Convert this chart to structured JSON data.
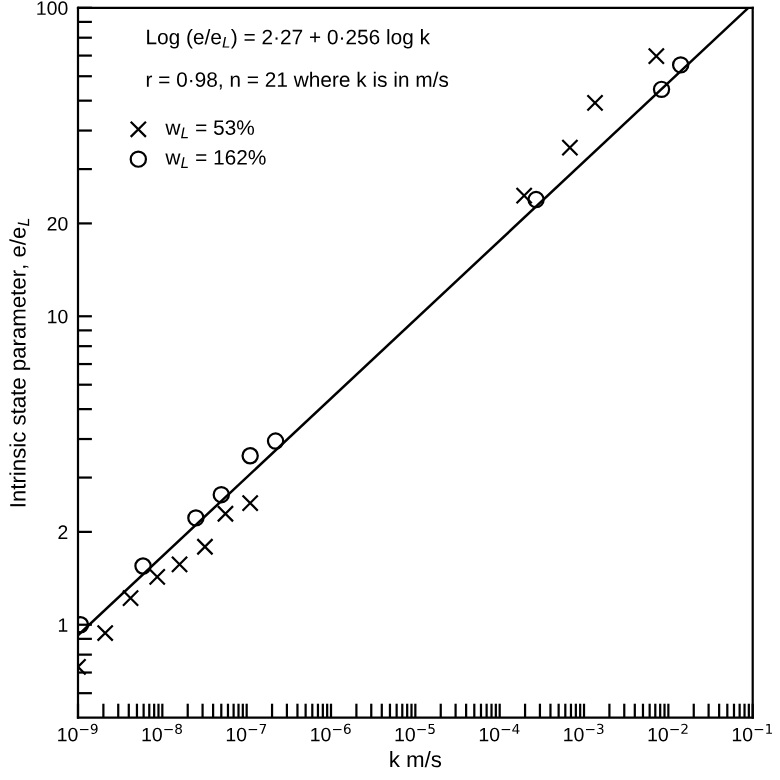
{
  "chart_data": {
    "type": "scatter",
    "log": "xy",
    "xlabel": "k m/s",
    "ylabel": "Intrinsic state parameter, e/e$_{L}$",
    "annotations": [
      "Log (e/e$_{L}$) = 2·27 + 0·256 log k",
      "r = 0·98, n = 21 where k is in m/s"
    ],
    "series": [
      {
        "name": "w$_{L}$ = 53%",
        "color": "#000000",
        "marker": "cross",
        "x": [
          1e-09,
          2.1e-09,
          4.2e-09,
          8.7e-09,
          1.6e-08,
          3.2e-08,
          5.6e-08,
          1.1e-07,
          0.000195,
          0.00068,
          0.00135,
          0.0072
        ],
        "values": [
          0.73,
          0.94,
          1.22,
          1.43,
          1.57,
          1.79,
          2.29,
          2.48,
          24.6,
          35.2,
          49.2,
          69.7
        ]
      },
      {
        "name": "w$_{L}$ = 162%",
        "color": "#000000",
        "marker": "circle",
        "x": [
          1.07e-09,
          5.9e-09,
          2.5e-08,
          5e-08,
          1.1e-07,
          2.2e-07,
          0.00027,
          0.0083,
          0.014
        ],
        "values": [
          1.0,
          1.55,
          2.22,
          2.64,
          3.53,
          3.94,
          23.9,
          54.4,
          65.3
        ]
      },
      {
        "type": "line",
        "color": "#000000",
        "marker": "none",
        "line_style": "solid",
        "x": [
          1e-09,
          0.089
        ],
        "values": [
          0.925,
          100
        ]
      }
    ],
    "xlim": [
      1e-09,
      0.1
    ],
    "ylim": [
      0.5,
      100
    ],
    "xticks": [
      {
        "value": 1e-09,
        "label": "10$^{−9}$"
      },
      {
        "value": 1e-08,
        "label": "10$^{−8}$"
      },
      {
        "value": 1e-07,
        "label": "10$^{−7}$"
      },
      {
        "value": 1e-06,
        "label": "10$^{−6}$"
      },
      {
        "value": 1e-05,
        "label": "10$^{−5}$"
      },
      {
        "value": 0.0001,
        "label": "10$^{−4}$"
      },
      {
        "value": 0.001,
        "label": "10$^{−3}$"
      },
      {
        "value": 0.01,
        "label": "10$^{−2}$"
      },
      {
        "value": 0.1,
        "label": "10$^{−1}$"
      },
      {
        "value": 2e-09,
        "label": null
      },
      {
        "value": 3e-09,
        "label": null
      },
      {
        "value": 4e-09,
        "label": null
      },
      {
        "value": 5e-09,
        "label": null
      },
      {
        "value": 6e-09,
        "label": null
      },
      {
        "value": 7e-09,
        "label": null
      },
      {
        "value": 8e-09,
        "label": null
      },
      {
        "value": 9e-09,
        "label": null
      },
      {
        "value": 2e-08,
        "label": null
      },
      {
        "value": 3e-08,
        "label": null
      },
      {
        "value": 4e-08,
        "label": null
      },
      {
        "value": 5e-08,
        "label": null
      },
      {
        "value": 6e-08,
        "label": null
      },
      {
        "value": 7e-08,
        "label": null
      },
      {
        "value": 8e-08,
        "label": null
      },
      {
        "value": 9e-08,
        "label": null
      },
      {
        "value": 2e-07,
        "label": null
      },
      {
        "value": 3e-07,
        "label": null
      },
      {
        "value": 4e-07,
        "label": null
      },
      {
        "value": 5e-07,
        "label": null
      },
      {
        "value": 6e-07,
        "label": null
      },
      {
        "value": 7e-07,
        "label": null
      },
      {
        "value": 8e-07,
        "label": null
      },
      {
        "value": 9e-07,
        "label": null
      },
      {
        "value": 2e-06,
        "label": null
      },
      {
        "value": 3e-06,
        "label": null
      },
      {
        "value": 4e-06,
        "label": null
      },
      {
        "value": 5e-06,
        "label": null
      },
      {
        "value": 6e-06,
        "label": null
      },
      {
        "value": 7e-06,
        "label": null
      },
      {
        "value": 8e-06,
        "label": null
      },
      {
        "value": 9e-06,
        "label": null
      },
      {
        "value": 2e-05,
        "label": null
      },
      {
        "value": 3e-05,
        "label": null
      },
      {
        "value": 4e-05,
        "label": null
      },
      {
        "value": 5e-05,
        "label": null
      },
      {
        "value": 6e-05,
        "label": null
      },
      {
        "value": 7e-05,
        "label": null
      },
      {
        "value": 8e-05,
        "label": null
      },
      {
        "value": 9e-05,
        "label": null
      },
      {
        "value": 0.0002,
        "label": null
      },
      {
        "value": 0.0003,
        "label": null
      },
      {
        "value": 0.0004,
        "label": null
      },
      {
        "value": 0.0005,
        "label": null
      },
      {
        "value": 0.0006,
        "label": null
      },
      {
        "value": 0.0007,
        "label": null
      },
      {
        "value": 0.0008,
        "label": null
      },
      {
        "value": 0.0009,
        "label": null
      },
      {
        "value": 0.002,
        "label": null
      },
      {
        "value": 0.003,
        "label": null
      },
      {
        "value": 0.004,
        "label": null
      },
      {
        "value": 0.005,
        "label": null
      },
      {
        "value": 0.006,
        "label": null
      },
      {
        "value": 0.007,
        "label": null
      },
      {
        "value": 0.008,
        "label": null
      },
      {
        "value": 0.009,
        "label": null
      },
      {
        "value": 0.02,
        "label": null
      },
      {
        "value": 0.03,
        "label": null
      },
      {
        "value": 0.04,
        "label": null
      },
      {
        "value": 0.05,
        "label": null
      },
      {
        "value": 0.06,
        "label": null
      },
      {
        "value": 0.07,
        "label": null
      },
      {
        "value": 0.08,
        "label": null
      },
      {
        "value": 0.09,
        "label": null
      }
    ],
    "yticks": [
      1,
      2,
      10,
      20,
      100,
      {
        "value": 0.6,
        "label": null
      },
      {
        "value": 0.7,
        "label": null
      },
      {
        "value": 0.8,
        "label": null
      },
      {
        "value": 0.9,
        "label": null
      },
      {
        "value": 3,
        "label": null
      },
      {
        "value": 4,
        "label": null
      },
      {
        "value": 5,
        "label": null
      },
      {
        "value": 6,
        "label": null
      },
      {
        "value": 7,
        "label": null
      },
      {
        "value": 8,
        "label": null
      },
      {
        "value": 9,
        "label": null
      },
      {
        "value": 30,
        "label": null
      },
      {
        "value": 40,
        "label": null
      },
      {
        "value": 50,
        "label": null
      },
      {
        "value": 60,
        "label": null
      },
      {
        "value": 70,
        "label": null
      },
      {
        "value": 80,
        "label": null
      },
      {
        "value": 90,
        "label": null
      }
    ],
    "grid": false,
    "legend": "top left"
  }
}
